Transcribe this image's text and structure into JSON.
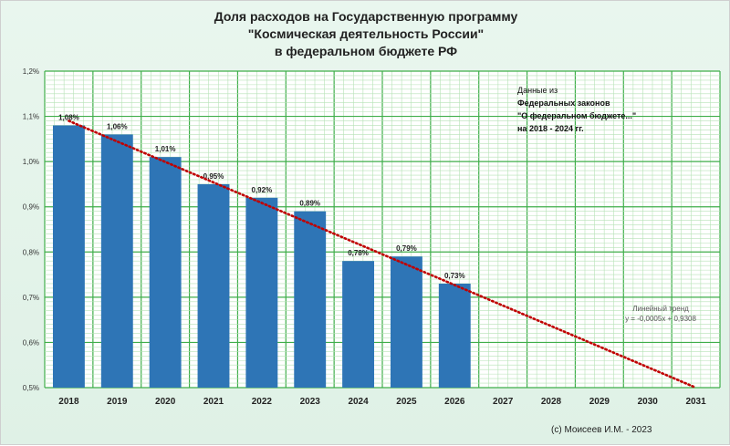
{
  "title": {
    "line1": "Доля расходов на Государственную  программу",
    "line2": "\"Космическая  деятельность  России\"",
    "line3": "в федеральном  бюджете РФ"
  },
  "note": {
    "line1": "Данные из",
    "line2": "Федеральных законов",
    "line3": "\"О федеральном бюджете...\"",
    "line4": "на 2018  - 2024 гг."
  },
  "trend_label": {
    "line1": "Линейный тренд",
    "line2": "y = -0,0005x + 0,9308"
  },
  "credit": "(c) Моисеев И.М. - 2023",
  "colors": {
    "bar": "#2e75b6",
    "trend": "#c00000",
    "grid_major": "#3fae4a",
    "grid_minor": "#b6e2b6"
  },
  "chart_data": {
    "type": "bar",
    "categories": [
      "2018",
      "2019",
      "2020",
      "2021",
      "2022",
      "2023",
      "2024",
      "2025",
      "2026",
      "2027",
      "2028",
      "2029",
      "2030",
      "2031"
    ],
    "values": [
      1.08,
      1.06,
      1.01,
      0.95,
      0.92,
      0.89,
      0.78,
      0.79,
      0.73,
      null,
      null,
      null,
      null,
      null
    ],
    "value_labels": [
      "1,08%",
      "1,06%",
      "1,01%",
      "0,95%",
      "0,92%",
      "0,89%",
      "0,78%",
      "0,79%",
      "0,73%",
      "",
      "",
      "",
      "",
      ""
    ],
    "ylim": [
      0.5,
      1.2
    ],
    "yticks": [
      0.5,
      0.6,
      0.7,
      0.8,
      0.9,
      1.0,
      1.1,
      1.2
    ],
    "ytick_labels": [
      "0,5%",
      "0,6%",
      "0,7%",
      "0,8%",
      "0,9%",
      "1,0%",
      "1,1%",
      "1,2%"
    ],
    "trendline": {
      "type": "linear",
      "start": {
        "x": "2018",
        "y": 1.09
      },
      "end": {
        "x": "2031",
        "y": 0.5
      }
    },
    "grid": true
  }
}
